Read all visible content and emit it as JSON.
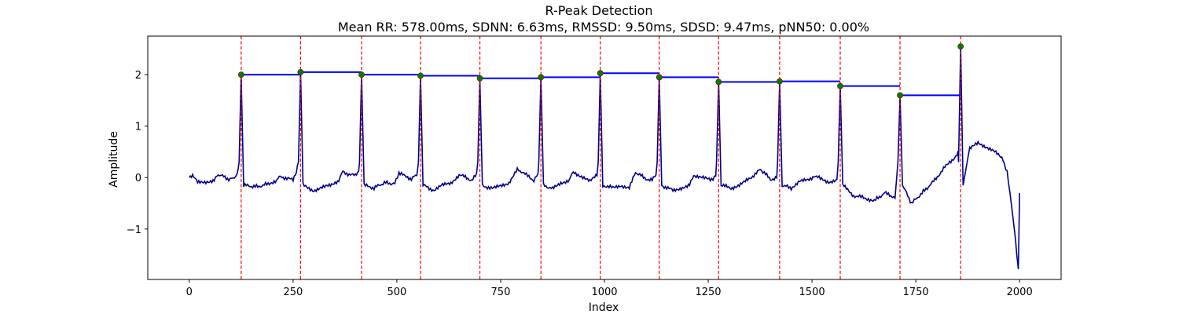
{
  "chart_data": {
    "type": "line",
    "title": "R-Peak Detection",
    "subtitle": "Mean RR: 578.00ms, SDNN: 6.63ms, RMSSD: 9.50ms, SDSD: 9.47ms, pNN50: 0.00%",
    "xlabel": "Index",
    "ylabel": "Amplitude",
    "xlim": [
      -100,
      2100
    ],
    "ylim": [
      -1.98,
      2.75
    ],
    "xticks": [
      0,
      250,
      500,
      750,
      1000,
      1250,
      1500,
      1750,
      2000
    ],
    "xtick_labels": [
      "0",
      "250",
      "500",
      "750",
      "1000",
      "1250",
      "1500",
      "1750",
      "2000"
    ],
    "yticks": [
      -1,
      0,
      1,
      2
    ],
    "ytick_labels": [
      "−1",
      "0",
      "1",
      "2"
    ],
    "grid": false,
    "colors": {
      "signal": "#00008b",
      "peak_lines": "#ff0000",
      "peak_markers": "#008000",
      "step_line": "#0000ff"
    },
    "series": [
      {
        "values_type": "ecg_signal",
        "baseline_points": [
          [
            0,
            0.0
          ],
          [
            8,
            0.05
          ],
          [
            20,
            -0.1
          ],
          [
            40,
            -0.08
          ],
          [
            60,
            -0.05
          ],
          [
            70,
            0.06
          ],
          [
            80,
            0.03
          ],
          [
            95,
            -0.03
          ],
          [
            105,
            -0.02
          ],
          [
            115,
            0.06
          ],
          [
            165,
            -0.18
          ],
          [
            190,
            -0.12
          ],
          [
            210,
            -0.05
          ],
          [
            220,
            0.03
          ],
          [
            235,
            -0.02
          ],
          [
            250,
            -0.04
          ],
          [
            258,
            0.1
          ],
          [
            300,
            -0.25
          ],
          [
            320,
            -0.2
          ],
          [
            340,
            -0.15
          ],
          [
            360,
            -0.05
          ],
          [
            370,
            0.12
          ],
          [
            385,
            0.06
          ],
          [
            400,
            0.04
          ],
          [
            408,
            0.1
          ],
          [
            445,
            -0.2
          ],
          [
            470,
            -0.1
          ],
          [
            495,
            -0.12
          ],
          [
            505,
            0.1
          ],
          [
            520,
            0.02
          ],
          [
            535,
            -0.02
          ],
          [
            548,
            0.05
          ],
          [
            590,
            -0.25
          ],
          [
            610,
            -0.15
          ],
          [
            630,
            -0.1
          ],
          [
            650,
            0.05
          ],
          [
            665,
            0.01
          ],
          [
            680,
            -0.05
          ],
          [
            692,
            0.05
          ],
          [
            730,
            -0.22
          ],
          [
            750,
            -0.15
          ],
          [
            770,
            -0.1
          ],
          [
            790,
            0.15
          ],
          [
            800,
            0.12
          ],
          [
            815,
            0.03
          ],
          [
            830,
            -0.05
          ],
          [
            840,
            0.06
          ],
          [
            875,
            -0.22
          ],
          [
            895,
            -0.1
          ],
          [
            915,
            -0.05
          ],
          [
            925,
            0.12
          ],
          [
            945,
            0.02
          ],
          [
            965,
            -0.08
          ],
          [
            982,
            0.05
          ],
          [
            1020,
            -0.2
          ],
          [
            1040,
            -0.15
          ],
          [
            1060,
            -0.2
          ],
          [
            1075,
            0.1
          ],
          [
            1085,
            0.05
          ],
          [
            1100,
            -0.02
          ],
          [
            1115,
            -0.05
          ],
          [
            1124,
            0.04
          ],
          [
            1165,
            -0.25
          ],
          [
            1185,
            -0.2
          ],
          [
            1205,
            -0.15
          ],
          [
            1215,
            0.05
          ],
          [
            1235,
            0.0
          ],
          [
            1255,
            -0.05
          ],
          [
            1268,
            0.03
          ],
          [
            1305,
            -0.2
          ],
          [
            1325,
            -0.15
          ],
          [
            1345,
            -0.05
          ],
          [
            1375,
            0.15
          ],
          [
            1385,
            0.1
          ],
          [
            1400,
            -0.05
          ],
          [
            1415,
            0.02
          ],
          [
            1450,
            -0.2
          ],
          [
            1470,
            -0.08
          ],
          [
            1490,
            -0.05
          ],
          [
            1505,
            0.03
          ],
          [
            1520,
            -0.02
          ],
          [
            1540,
            -0.08
          ],
          [
            1560,
            -0.05
          ],
          [
            1600,
            -0.35
          ],
          [
            1630,
            -0.4
          ],
          [
            1650,
            -0.45
          ],
          [
            1675,
            -0.3
          ],
          [
            1690,
            -0.35
          ],
          [
            1700,
            -0.4
          ],
          [
            1740,
            -0.5
          ],
          [
            1765,
            -0.3
          ],
          [
            1790,
            -0.1
          ],
          [
            1820,
            0.2
          ],
          [
            1840,
            0.35
          ],
          [
            1852,
            0.5
          ],
          [
            1880,
            0.55
          ],
          [
            1900,
            0.68
          ],
          [
            1920,
            0.6
          ],
          [
            1940,
            0.5
          ],
          [
            1960,
            0.35
          ],
          [
            1970,
            0.1
          ],
          [
            1980,
            -0.5
          ],
          [
            1990,
            -1.2
          ],
          [
            1997,
            -1.78
          ],
          [
            2000,
            -0.3
          ]
        ]
      }
    ],
    "peaks": [
      {
        "x": 125,
        "y": 2.0
      },
      {
        "x": 268,
        "y": 2.05
      },
      {
        "x": 415,
        "y": 2.0
      },
      {
        "x": 557,
        "y": 1.98
      },
      {
        "x": 700,
        "y": 1.93
      },
      {
        "x": 847,
        "y": 1.95
      },
      {
        "x": 990,
        "y": 2.03
      },
      {
        "x": 1132,
        "y": 1.95
      },
      {
        "x": 1275,
        "y": 1.86
      },
      {
        "x": 1422,
        "y": 1.87
      },
      {
        "x": 1568,
        "y": 1.78
      },
      {
        "x": 1712,
        "y": 1.6
      },
      {
        "x": 1858,
        "y": 2.55
      }
    ]
  }
}
